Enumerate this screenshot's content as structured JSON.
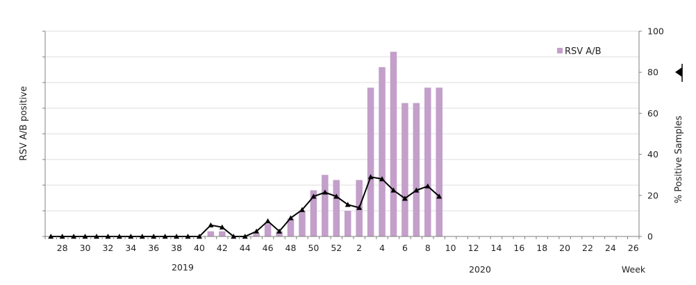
{
  "chart_data": {
    "type": "bar",
    "ylabel_left": "RSV A/B positive",
    "ylabel_right": "% Positive Samples",
    "xlabel": "Week",
    "year_labels": [
      "2019",
      "2020"
    ],
    "ylim_right": [
      0,
      100
    ],
    "right_ticks": [
      "0",
      "20",
      "40",
      "60",
      "80",
      "100"
    ],
    "grid": true,
    "legend": {
      "position": "top-right",
      "entries": [
        "RSV A/B"
      ]
    },
    "colors": {
      "bar": "#c39fca",
      "line": "#000000",
      "grid": "#dddddd",
      "axis": "#7f7f7f"
    },
    "x_weeks": [
      "27",
      "28",
      "29",
      "30",
      "31",
      "32",
      "33",
      "34",
      "35",
      "36",
      "37",
      "38",
      "39",
      "40",
      "41",
      "42",
      "43",
      "44",
      "45",
      "46",
      "47",
      "48",
      "49",
      "50",
      "51",
      "52",
      "1",
      "2",
      "3",
      "4",
      "5",
      "6",
      "7",
      "8",
      "9",
      "10",
      "11",
      "12",
      "13",
      "14",
      "15",
      "16",
      "17",
      "18",
      "19",
      "20",
      "21",
      "22",
      "23",
      "24",
      "25",
      "26"
    ],
    "x_tick_labels": [
      "28",
      "30",
      "32",
      "34",
      "36",
      "38",
      "40",
      "42",
      "44",
      "46",
      "48",
      "50",
      "52",
      "2",
      "4",
      "6",
      "8",
      "10",
      "12",
      "14",
      "16",
      "18",
      "20",
      "22",
      "24",
      "26"
    ],
    "series": [
      {
        "name": "RSV A/B",
        "type": "bar",
        "axis": "left",
        "values_pct_of_axis": [
          0,
          0,
          0,
          0,
          0,
          0,
          0,
          0,
          0,
          0,
          0,
          0,
          0,
          0,
          2.5,
          2.5,
          0,
          0,
          1.25,
          6.25,
          2.5,
          8.75,
          12.5,
          22.5,
          30,
          27.5,
          12.5,
          27.5,
          72.5,
          82.5,
          90,
          65,
          65,
          72.5,
          72.5,
          0,
          0,
          0,
          0,
          0,
          0,
          0,
          0,
          0,
          0,
          0,
          0,
          0,
          0,
          0,
          0,
          0
        ]
      },
      {
        "type": "line",
        "axis": "right",
        "marker": "triangle",
        "values": [
          0,
          0,
          0,
          0,
          0,
          0,
          0,
          0,
          0,
          0,
          0,
          0,
          0,
          0,
          5.5,
          4.5,
          0,
          0,
          2.5,
          7.5,
          2.5,
          9,
          13,
          19.5,
          21.5,
          19.5,
          15.5,
          14,
          29,
          28,
          22.5,
          18.5,
          22.5,
          24.5,
          19.5
        ]
      }
    ]
  }
}
